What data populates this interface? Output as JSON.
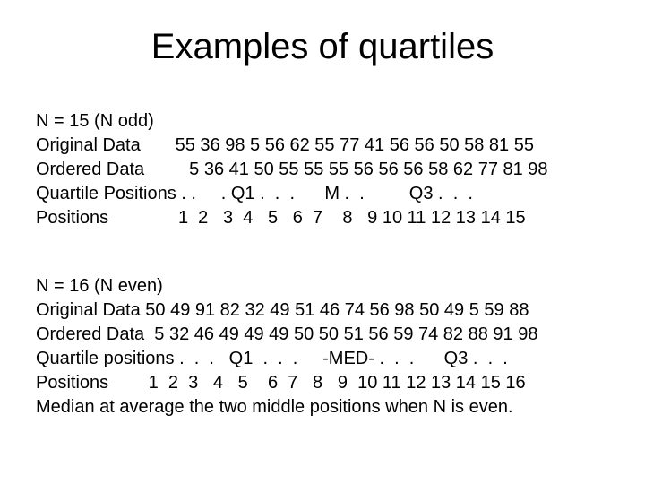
{
  "title": "Examples of quartiles",
  "block1": {
    "l1": "N = 15 (N odd)",
    "l2": "Original Data       55 36 98 5 56 62 55 77 41 56 56 50 58 81 55",
    "l3": "Ordered Data         5 36 41 50 55 55 55 56 56 56 58 62 77 81 98",
    "l4": "Quartile Positions . .     . Q1 .  .  .      M .  .         Q3 .  .  .",
    "l5": "Positions              1  2   3  4   5   6  7    8   9 10 11 12 13 14 15"
  },
  "block2": {
    "l1": "N = 16 (N even)",
    "l2": "Original Data 50 49 91 82 32 49 51 46 74 56 98 50 49 5 59 88",
    "l3": "Ordered Data  5 32 46 49 49 49 50 50 51 56 59 74 82 88 91 98",
    "l4": "Quartile positions .  .  .   Q1  .  .  .     -MED- .  .  .      Q3 .  .  .",
    "l5": "Positions        1  2  3   4   5    6  7   8   9  10 11 12 13 14 15 16",
    "l6": "Median at average the two middle positions when N is even."
  }
}
